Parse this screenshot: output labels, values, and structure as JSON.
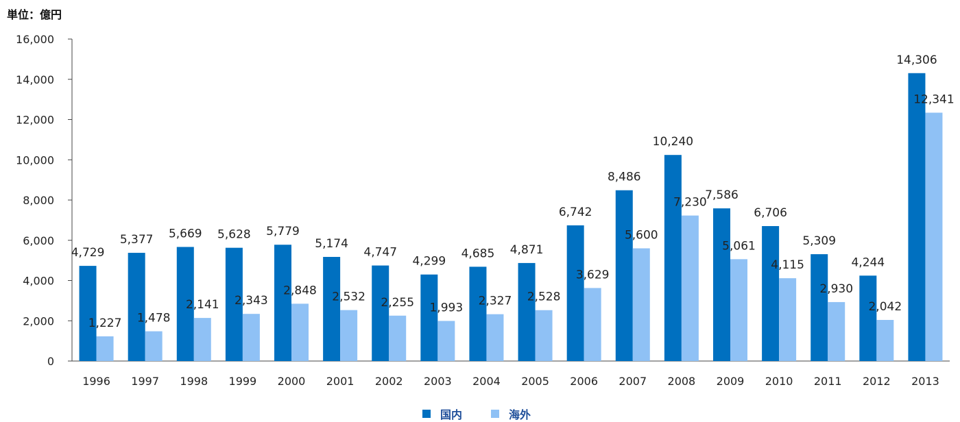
{
  "chart_data": {
    "type": "bar",
    "unit_label": "単位：億円",
    "categories": [
      "1996",
      "1997",
      "1998",
      "1999",
      "2000",
      "2001",
      "2002",
      "2003",
      "2004",
      "2005",
      "2006",
      "2007",
      "2008",
      "2009",
      "2010",
      "2011",
      "2012",
      "2013"
    ],
    "series": [
      {
        "name": "国内",
        "color": "#0070c0",
        "values": [
          4729,
          5377,
          5669,
          5628,
          5779,
          5174,
          4747,
          4299,
          4685,
          4871,
          6742,
          8486,
          10240,
          7586,
          6706,
          5309,
          4244,
          14306
        ],
        "labels": [
          "4,729",
          "5,377",
          "5,669",
          "5,628",
          "5,779",
          "5,174",
          "4,747",
          "4,299",
          "4,685",
          "4,871",
          "6,742",
          "8,486",
          "10,240",
          "7,586",
          "6,706",
          "5,309",
          "4,244",
          "14,306"
        ]
      },
      {
        "name": "海外",
        "color": "#8fc1f5",
        "values": [
          1227,
          1478,
          2141,
          2343,
          2848,
          2532,
          2255,
          1993,
          2327,
          2528,
          3629,
          5600,
          7230,
          5061,
          4115,
          2930,
          2042,
          12341
        ],
        "labels": [
          "1,227",
          "1,478",
          "2,141",
          "2,343",
          "2,848",
          "2,532",
          "2,255",
          "1,993",
          "2,327",
          "2,528",
          "3,629",
          "5,600",
          "7,230",
          "5,061",
          "4,115",
          "2,930",
          "2,042",
          "12,341"
        ]
      }
    ],
    "ylim": [
      0,
      16000
    ],
    "yticks": [
      0,
      2000,
      4000,
      6000,
      8000,
      10000,
      12000,
      14000,
      16000
    ],
    "ytick_labels": [
      "0",
      "2,000",
      "4,000",
      "6,000",
      "8,000",
      "10,000",
      "12,000",
      "14,000",
      "16,000"
    ],
    "grid": false,
    "legend_position": "bottom-center"
  }
}
